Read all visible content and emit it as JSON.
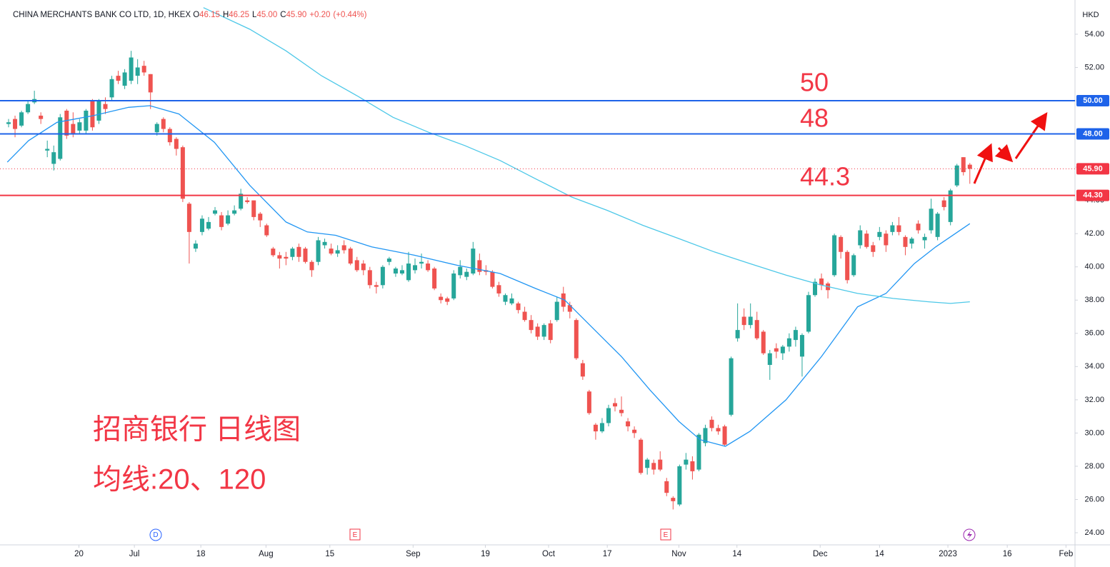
{
  "chart_data": {
    "type": "candlestick",
    "header": {
      "symbol": "CHINA MERCHANTS BANK CO LTD, 1D, HKEX",
      "o_label": "O",
      "o": 46.15,
      "h_label": "H",
      "h": 46.25,
      "l_label": "L",
      "l": 45.0,
      "c_label": "C",
      "c": 45.9,
      "change": "+0.20",
      "change_pct": "(+0.44%)"
    },
    "currency": "HKD",
    "up_color": "#26a69a",
    "down_color": "#ef5350",
    "candles": [
      [
        48.6,
        48.9,
        48.4,
        48.7
      ],
      [
        48.9,
        49.1,
        47.8,
        48.3
      ],
      [
        48.5,
        49.4,
        48.4,
        49.3
      ],
      [
        49.3,
        50,
        49.2,
        49.8
      ],
      [
        49.9,
        50.6,
        49.8,
        50.1
      ],
      [
        49.1,
        49.3,
        48.6,
        48.9
      ],
      [
        47,
        47.6,
        46.6,
        47.1
      ],
      [
        46.2,
        47.3,
        45.8,
        46.9
      ],
      [
        46.5,
        49.2,
        46.4,
        49
      ],
      [
        49.4,
        49.5,
        47.7,
        47.9
      ],
      [
        48.6,
        49.3,
        47.8,
        48
      ],
      [
        48.2,
        48.9,
        48,
        48.7
      ],
      [
        48.2,
        49.5,
        48,
        49.4
      ],
      [
        50,
        50.1,
        48.2,
        48.4
      ],
      [
        48.8,
        50.1,
        48.6,
        50
      ],
      [
        49.8,
        50.2,
        49.2,
        49.5
      ],
      [
        50.2,
        51.5,
        50,
        51.3
      ],
      [
        51.5,
        51.8,
        51,
        51.2
      ],
      [
        50.9,
        51.9,
        50.7,
        51.7
      ],
      [
        51.2,
        53,
        51,
        52.6
      ],
      [
        51.5,
        52.5,
        51,
        52
      ],
      [
        52.1,
        52.4,
        51.5,
        51.7
      ],
      [
        51.6,
        51.6,
        49.5,
        50.5
      ],
      [
        48.1,
        48.7,
        47.9,
        48.6
      ],
      [
        48.9,
        49,
        48.1,
        48.3
      ],
      [
        48.3,
        48.4,
        47.3,
        47.5
      ],
      [
        47.7,
        47.8,
        46.7,
        47.1
      ],
      [
        47.2,
        47.3,
        43.9,
        44.1
      ],
      [
        43.8,
        43.9,
        40.2,
        42.1
      ],
      [
        41.1,
        41.6,
        40.9,
        41.4
      ],
      [
        42.1,
        43.1,
        41.9,
        42.9
      ],
      [
        42.3,
        43,
        42.2,
        42.7
      ],
      [
        43.2,
        43.6,
        43.1,
        43.4
      ],
      [
        43.1,
        43.3,
        42.2,
        42.4
      ],
      [
        42.6,
        43.4,
        42.5,
        43.1
      ],
      [
        43.2,
        43.7,
        43.1,
        43.4
      ],
      [
        43.5,
        44.7,
        43.4,
        44.4
      ],
      [
        44,
        44.2,
        43.8,
        43.9
      ],
      [
        44,
        44,
        42.8,
        43
      ],
      [
        43.2,
        43.3,
        42.4,
        42.8
      ],
      [
        42.5,
        42.6,
        41.8,
        41.9
      ],
      [
        41.1,
        41.2,
        40.6,
        40.7
      ],
      [
        40.7,
        40.9,
        39.9,
        40.5
      ],
      [
        40.6,
        40.9,
        40.1,
        40.5
      ],
      [
        40.6,
        41.2,
        40.4,
        41.1
      ],
      [
        41.2,
        41.4,
        40.3,
        40.6
      ],
      [
        41.1,
        41.2,
        40.2,
        40.3
      ],
      [
        40.3,
        40.4,
        39.4,
        39.8
      ],
      [
        40.3,
        41.8,
        40.1,
        41.6
      ],
      [
        41.3,
        41.7,
        41.1,
        41.5
      ],
      [
        41.1,
        41.4,
        40.7,
        40.8
      ],
      [
        40.8,
        41.3,
        40.6,
        41
      ],
      [
        41.3,
        41.6,
        40.8,
        41
      ],
      [
        41.1,
        41.2,
        40.1,
        40.2
      ],
      [
        40.4,
        40.6,
        39.7,
        39.8
      ],
      [
        40.2,
        40.4,
        39.5,
        39.8
      ],
      [
        39.8,
        40,
        38.7,
        38.9
      ],
      [
        38.9,
        39.1,
        38.4,
        38.8
      ],
      [
        38.9,
        40.1,
        38.7,
        40
      ],
      [
        40.3,
        40.6,
        40.1,
        40.5
      ],
      [
        39.6,
        40,
        39.4,
        39.9
      ],
      [
        39.6,
        40.1,
        39.5,
        39.8
      ],
      [
        39.2,
        40.9,
        39.1,
        40.2
      ],
      [
        39.8,
        40.5,
        39.6,
        40.1
      ],
      [
        40.2,
        40.8,
        39.9,
        40.3
      ],
      [
        40.2,
        40.4,
        39.7,
        39.8
      ],
      [
        39.9,
        40,
        38.6,
        38.7
      ],
      [
        38.2,
        38.4,
        37.8,
        38
      ],
      [
        38.1,
        38.2,
        37.7,
        37.9
      ],
      [
        38.1,
        39.8,
        38,
        39.6
      ],
      [
        39.5,
        40.4,
        39.3,
        40
      ],
      [
        39.4,
        39.9,
        39.2,
        39.7
      ],
      [
        39.6,
        41.5,
        39.5,
        41.1
      ],
      [
        40.4,
        40.8,
        39.5,
        39.7
      ],
      [
        39.8,
        40.1,
        39.5,
        39.7
      ],
      [
        39.7,
        39.8,
        38.7,
        38.8
      ],
      [
        38.9,
        39.1,
        38.2,
        38.4
      ],
      [
        37.9,
        38.4,
        37.7,
        38.3
      ],
      [
        37.8,
        38.4,
        37.7,
        38.1
      ],
      [
        37.8,
        37.9,
        37.2,
        37.4
      ],
      [
        37.3,
        37.6,
        36.7,
        36.8
      ],
      [
        36.8,
        37.1,
        36,
        36.2
      ],
      [
        36.4,
        36.6,
        35.6,
        35.8
      ],
      [
        35.8,
        36.6,
        35.6,
        36.5
      ],
      [
        36.6,
        36.8,
        35.4,
        35.6
      ],
      [
        36.8,
        38.2,
        36.7,
        37.9
      ],
      [
        38.4,
        38.8,
        37.3,
        37.6
      ],
      [
        37.7,
        37.9,
        36.9,
        37.3
      ],
      [
        36.8,
        36.9,
        34.4,
        34.5
      ],
      [
        34.2,
        34.4,
        33.2,
        33.4
      ],
      [
        32.5,
        32.6,
        31.1,
        31.2
      ],
      [
        30.5,
        30.6,
        29.6,
        30.1
      ],
      [
        30.1,
        30.9,
        30,
        30.6
      ],
      [
        30.6,
        31.7,
        30.4,
        31.5
      ],
      [
        31.8,
        32.1,
        31.3,
        31.6
      ],
      [
        31.4,
        32.2,
        31,
        31.2
      ],
      [
        30.7,
        30.9,
        30.1,
        30.4
      ],
      [
        30.2,
        30.4,
        29.7,
        30
      ],
      [
        29.6,
        29.7,
        27.5,
        27.6
      ],
      [
        27.9,
        28.5,
        27.5,
        28.4
      ],
      [
        28.2,
        28.4,
        27.5,
        27.8
      ],
      [
        28.4,
        28.9,
        27.7,
        27.8
      ],
      [
        27.1,
        27.3,
        26.2,
        26.4
      ],
      [
        26.1,
        26.2,
        25.4,
        25.9
      ],
      [
        25.7,
        28.1,
        25.6,
        28
      ],
      [
        28.1,
        28.8,
        27.8,
        28.4
      ],
      [
        28.3,
        28.6,
        27.2,
        27.7
      ],
      [
        27.8,
        30,
        27.7,
        29.9
      ],
      [
        29.4,
        30.5,
        29.2,
        30.3
      ],
      [
        30.8,
        31,
        30.1,
        30.3
      ],
      [
        30.3,
        30.5,
        29.9,
        30.1
      ],
      [
        30.4,
        30.5,
        29.2,
        29.3
      ],
      [
        31.1,
        34.6,
        31,
        34.5
      ],
      [
        35.7,
        37.8,
        35.5,
        36.2
      ],
      [
        37,
        37.5,
        36.2,
        36.5
      ],
      [
        36.5,
        37.8,
        36.3,
        37
      ],
      [
        36.8,
        37.3,
        35.6,
        35.7
      ],
      [
        36.1,
        36.2,
        34.7,
        34.8
      ],
      [
        34.1,
        35,
        33.2,
        34.8
      ],
      [
        35.1,
        35.4,
        34.5,
        34.9
      ],
      [
        34.8,
        35.3,
        34.4,
        35.2
      ],
      [
        35.2,
        36,
        34.9,
        35.7
      ],
      [
        35.6,
        36.4,
        35.2,
        36.2
      ],
      [
        34.6,
        36,
        33.4,
        35.9
      ],
      [
        36.1,
        38.5,
        36,
        38.3
      ],
      [
        38.3,
        39.3,
        38.2,
        39.1
      ],
      [
        39.3,
        39.6,
        38.6,
        38.9
      ],
      [
        39,
        39.1,
        38.1,
        38.6
      ],
      [
        39.5,
        42,
        39.4,
        41.9
      ],
      [
        41.8,
        41.9,
        40.5,
        40.9
      ],
      [
        40.9,
        41,
        39,
        39.2
      ],
      [
        39.5,
        40.8,
        39.4,
        40.7
      ],
      [
        41.3,
        42.5,
        41.1,
        42.2
      ],
      [
        42,
        42.2,
        41.1,
        41.2
      ],
      [
        41.3,
        41.5,
        40.6,
        40.9
      ],
      [
        41.8,
        42.4,
        41.6,
        42.1
      ],
      [
        42,
        42.2,
        40.9,
        41.3
      ],
      [
        42.1,
        42.7,
        41.9,
        42.5
      ],
      [
        42.5,
        43,
        41.9,
        42.1
      ],
      [
        41.8,
        41.9,
        40.7,
        41.2
      ],
      [
        41.4,
        41.8,
        41.1,
        41.7
      ],
      [
        42.6,
        42.8,
        42,
        42.2
      ],
      [
        41.6,
        42,
        41.1,
        41.8
      ],
      [
        42.2,
        44.1,
        42,
        43.5
      ],
      [
        41.8,
        43.3,
        41.6,
        43.2
      ],
      [
        44,
        44.2,
        43.4,
        43.6
      ],
      [
        42.7,
        44.7,
        42.5,
        44.6
      ],
      [
        44.9,
        46.2,
        44.8,
        46.1
      ],
      [
        46.6,
        46.6,
        45.5,
        45.7
      ],
      [
        46.15,
        46.25,
        45,
        45.9
      ]
    ],
    "ma_lines": [
      {
        "color": "#2196f3",
        "x": [
          -0.2,
          3.1,
          7.5,
          13.1,
          18.6,
          21.9,
          26.4,
          31.9,
          37.4,
          43,
          46.3,
          50.7,
          56.3,
          62.9,
          69.5,
          76.2,
          81.7,
          86.2,
          90.6,
          95,
          99.4,
          103.9,
          107.2,
          111.1,
          114.9,
          120.5,
          126,
          131.6,
          136,
          140.4,
          143.7,
          149
        ],
        "values": [
          46.3,
          47.6,
          48.7,
          49.1,
          49.6,
          49.7,
          49.2,
          47.5,
          44.9,
          42.7,
          42.1,
          41.9,
          41.2,
          40.7,
          40.1,
          39.6,
          38.7,
          38,
          36.3,
          34.6,
          32.6,
          30.7,
          29.6,
          29.2,
          30.1,
          32,
          34.6,
          37.6,
          38.4,
          40.2,
          41.2,
          42.6
        ]
      },
      {
        "color": "#4dc8e8",
        "x": [
          30.2,
          37.4,
          43,
          48.5,
          54,
          59.6,
          65.1,
          70.7,
          76.2,
          81.7,
          87.3,
          92.8,
          98.3,
          103.9,
          109.4,
          114.9,
          120.5,
          126,
          131.6,
          137.1,
          142.6,
          146,
          149
        ],
        "values": [
          55.6,
          54.3,
          53,
          51.5,
          50.3,
          49,
          48.1,
          47.3,
          46.4,
          45.3,
          44.2,
          43.4,
          42.5,
          41.7,
          40.9,
          40.2,
          39.5,
          38.9,
          38.4,
          38.1,
          37.9,
          37.8,
          37.9
        ]
      }
    ],
    "hlines": [
      {
        "value": 50,
        "label": "50.00",
        "color": "#1e63e9"
      },
      {
        "value": 48,
        "label": "48.00",
        "color": "#1e63e9"
      },
      {
        "value": 44.3,
        "label": "44.30",
        "color": "#f23645"
      }
    ],
    "last_price": {
      "value": 45.9,
      "label": "45.90",
      "color": "#f23645"
    },
    "annotations": [
      "50",
      "48",
      "44.3",
      "招商银行 日线图",
      "均线:20、120"
    ],
    "events": [
      "D",
      "E",
      "E"
    ],
    "xlim": [
      -1.33,
      165.3
    ],
    "xticks": [
      {
        "value": 10.9,
        "label": "20"
      },
      {
        "value": 19.5,
        "label": "Jul"
      },
      {
        "value": 29.8,
        "label": "18"
      },
      {
        "value": 39.9,
        "label": "Aug"
      },
      {
        "value": 49.8,
        "label": "15"
      },
      {
        "value": 62.7,
        "label": "Sep"
      },
      {
        "value": 73.9,
        "label": "19"
      },
      {
        "value": 83.7,
        "label": "Oct"
      },
      {
        "value": 92.8,
        "label": "17"
      },
      {
        "value": 103.9,
        "label": "Nov"
      },
      {
        "value": 112.9,
        "label": "14"
      },
      {
        "value": 125.8,
        "label": "Dec"
      },
      {
        "value": 135,
        "label": "14"
      },
      {
        "value": 145.6,
        "label": "2023"
      },
      {
        "value": 154.8,
        "label": "16"
      },
      {
        "value": 163.9,
        "label": "Feb"
      }
    ],
    "ylim": [
      23.27,
      56.06
    ],
    "yticks": [
      {
        "value": 24,
        "label": "24.00"
      },
      {
        "value": 26,
        "label": "26.00"
      },
      {
        "value": 28,
        "label": "28.00"
      },
      {
        "value": 30,
        "label": "30.00"
      },
      {
        "value": 32,
        "label": "32.00"
      },
      {
        "value": 34,
        "label": "34.00"
      },
      {
        "value": 36,
        "label": "36.00"
      },
      {
        "value": 38,
        "label": "38.00"
      },
      {
        "value": 40,
        "label": "40.00"
      },
      {
        "value": 42,
        "label": "42.00"
      },
      {
        "value": 44,
        "label": "44.00"
      },
      {
        "value": 46,
        "label": "46.00"
      },
      {
        "value": 48,
        "label": "48.00"
      },
      {
        "value": 50,
        "label": "50.00"
      },
      {
        "value": 52,
        "label": "52.00"
      },
      {
        "value": 54,
        "label": "54.00"
      }
    ]
  }
}
